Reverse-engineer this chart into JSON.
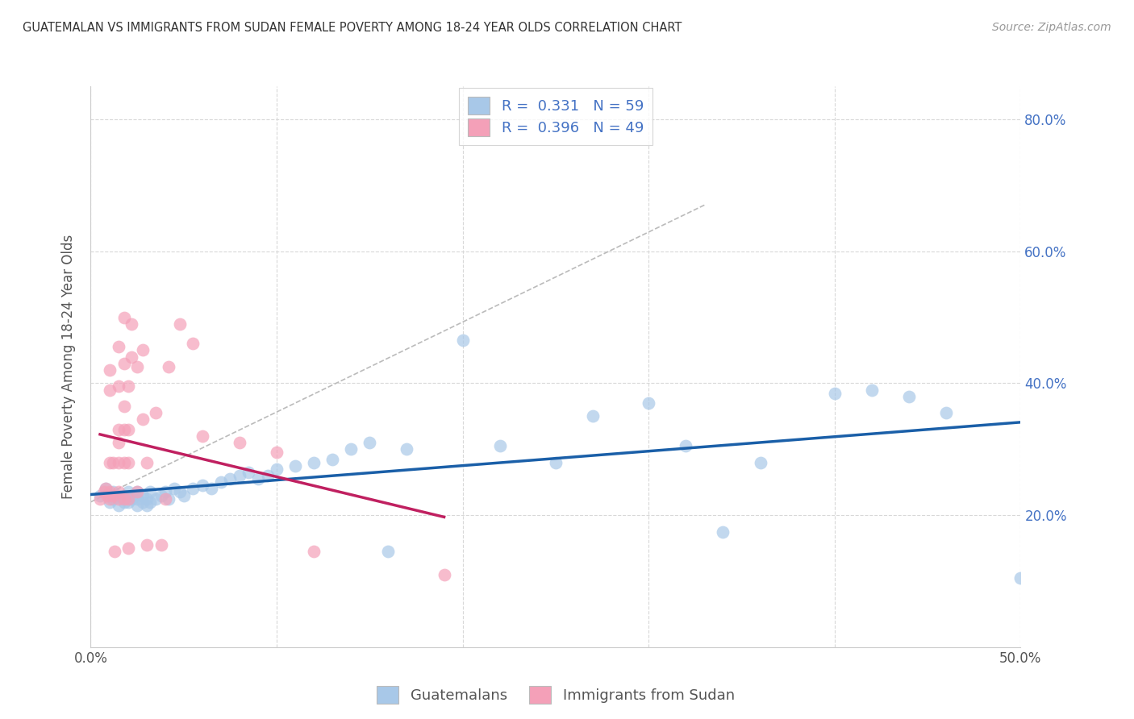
{
  "title": "GUATEMALAN VS IMMIGRANTS FROM SUDAN FEMALE POVERTY AMONG 18-24 YEAR OLDS CORRELATION CHART",
  "source": "Source: ZipAtlas.com",
  "ylabel": "Female Poverty Among 18-24 Year Olds",
  "xlim": [
    0.0,
    0.5
  ],
  "ylim": [
    0.0,
    0.85
  ],
  "xticks": [
    0.0,
    0.1,
    0.2,
    0.3,
    0.4,
    0.5
  ],
  "yticks": [
    0.0,
    0.2,
    0.4,
    0.6,
    0.8
  ],
  "guatemalan_R": 0.331,
  "guatemalan_N": 59,
  "sudan_R": 0.396,
  "sudan_N": 49,
  "guatemalan_color": "#a8c8e8",
  "sudan_color": "#f4a0b8",
  "guatemalan_line_color": "#1a5fa8",
  "sudan_line_color": "#c02060",
  "background_color": "#ffffff",
  "grid_color": "#d8d8d8",
  "guatemalan_x": [
    0.005,
    0.008,
    0.01,
    0.012,
    0.012,
    0.015,
    0.015,
    0.018,
    0.018,
    0.02,
    0.02,
    0.022,
    0.022,
    0.025,
    0.025,
    0.025,
    0.028,
    0.028,
    0.03,
    0.03,
    0.032,
    0.032,
    0.035,
    0.038,
    0.04,
    0.042,
    0.045,
    0.048,
    0.05,
    0.055,
    0.06,
    0.065,
    0.07,
    0.075,
    0.08,
    0.085,
    0.09,
    0.095,
    0.1,
    0.11,
    0.12,
    0.13,
    0.14,
    0.15,
    0.16,
    0.17,
    0.2,
    0.22,
    0.25,
    0.27,
    0.3,
    0.32,
    0.34,
    0.36,
    0.4,
    0.42,
    0.44,
    0.46,
    0.5
  ],
  "guatemalan_y": [
    0.23,
    0.24,
    0.22,
    0.225,
    0.235,
    0.215,
    0.23,
    0.22,
    0.23,
    0.22,
    0.235,
    0.225,
    0.23,
    0.215,
    0.225,
    0.235,
    0.22,
    0.23,
    0.215,
    0.225,
    0.22,
    0.235,
    0.225,
    0.23,
    0.235,
    0.225,
    0.24,
    0.235,
    0.23,
    0.24,
    0.245,
    0.24,
    0.25,
    0.255,
    0.26,
    0.265,
    0.255,
    0.26,
    0.27,
    0.275,
    0.28,
    0.285,
    0.3,
    0.31,
    0.145,
    0.3,
    0.465,
    0.305,
    0.28,
    0.35,
    0.37,
    0.305,
    0.175,
    0.28,
    0.385,
    0.39,
    0.38,
    0.355,
    0.105
  ],
  "sudan_x": [
    0.005,
    0.007,
    0.008,
    0.009,
    0.01,
    0.01,
    0.01,
    0.01,
    0.01,
    0.012,
    0.012,
    0.013,
    0.015,
    0.015,
    0.015,
    0.015,
    0.015,
    0.015,
    0.015,
    0.018,
    0.018,
    0.018,
    0.018,
    0.018,
    0.018,
    0.02,
    0.02,
    0.02,
    0.02,
    0.02,
    0.022,
    0.022,
    0.025,
    0.025,
    0.028,
    0.028,
    0.03,
    0.03,
    0.035,
    0.038,
    0.04,
    0.042,
    0.048,
    0.055,
    0.06,
    0.08,
    0.1,
    0.12,
    0.19
  ],
  "sudan_y": [
    0.225,
    0.235,
    0.24,
    0.23,
    0.225,
    0.235,
    0.28,
    0.39,
    0.42,
    0.23,
    0.28,
    0.145,
    0.225,
    0.235,
    0.28,
    0.31,
    0.33,
    0.395,
    0.455,
    0.225,
    0.28,
    0.33,
    0.365,
    0.43,
    0.5,
    0.15,
    0.225,
    0.28,
    0.33,
    0.395,
    0.44,
    0.49,
    0.235,
    0.425,
    0.345,
    0.45,
    0.155,
    0.28,
    0.355,
    0.155,
    0.225,
    0.425,
    0.49,
    0.46,
    0.32,
    0.31,
    0.295,
    0.145,
    0.11
  ]
}
